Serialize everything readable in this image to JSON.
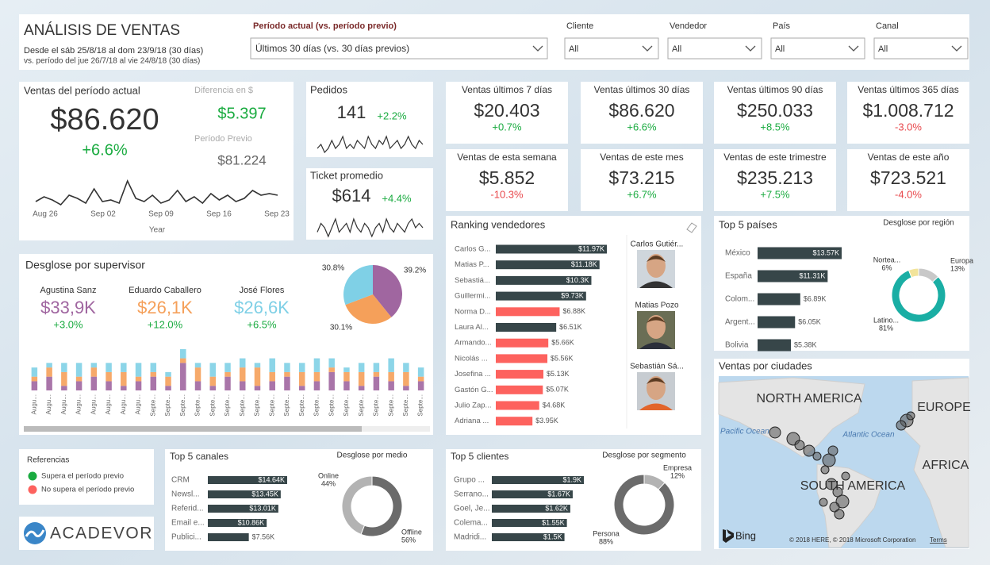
{
  "header": {
    "title": "ANÁLISIS DE VENTAS",
    "date_range": "Desde el sáb 25/8/18 al dom 23/9/18 (30 días)",
    "compare_range": "vs. período del jue 26/7/18 al vie 24/8/18 (30 días)",
    "period_label": "Período actual (vs. período previo)",
    "period_value": "Últimos 30 días (vs. 30 días previos)",
    "filters": [
      {
        "label": "Cliente",
        "value": "All"
      },
      {
        "label": "Vendedor",
        "value": "All"
      },
      {
        "label": "País",
        "value": "All"
      },
      {
        "label": "Canal",
        "value": "All"
      }
    ]
  },
  "current_sales": {
    "title": "Ventas del período actual",
    "value": "$86.620",
    "change": "+6.6%",
    "diff_label": "Diferencia en $",
    "diff_value": "$5.397",
    "prev_label": "Período Previo",
    "prev_value": "$81.224",
    "trend": [
      2.6,
      2.9,
      2.7,
      2.4,
      3.0,
      2.8,
      2.5,
      3.4,
      2.6,
      2.7,
      2.5,
      3.9,
      2.8,
      2.6,
      3.0,
      2.5,
      2.7,
      3.3,
      2.6,
      2.9,
      2.5,
      3.1,
      2.7,
      3.0,
      2.6,
      2.8,
      3.3,
      3.0,
      3.1,
      3.0
    ],
    "x_labels": [
      "Aug 26",
      "Sep 02",
      "Sep 09",
      "Sep 16",
      "Sep 23"
    ],
    "x_title": "Year"
  },
  "orders": {
    "title": "Pedidos",
    "value": "141",
    "change": "+2.2%",
    "trend": [
      3,
      4,
      2,
      3,
      5,
      3,
      4,
      6,
      3,
      4,
      3,
      5,
      4,
      3,
      6,
      4,
      3,
      5,
      4,
      6,
      3,
      4,
      5,
      3,
      4,
      6,
      4,
      3,
      5,
      4
    ]
  },
  "ticket": {
    "title": "Ticket promedio",
    "value": "$614",
    "change": "+4.4%",
    "trend": [
      3,
      5,
      4,
      2,
      4,
      6,
      3,
      4,
      5,
      3,
      6,
      4,
      3,
      5,
      4,
      2,
      4,
      5,
      3,
      6,
      4,
      3,
      5,
      4,
      3,
      5,
      6,
      4,
      5,
      4
    ]
  },
  "cards": [
    {
      "title": "Ventas últimos 7 días",
      "value": "$20.403",
      "change": "+0.7%"
    },
    {
      "title": "Ventas últimos 30 días",
      "value": "$86.620",
      "change": "+6.6%"
    },
    {
      "title": "Ventas últimos 90 días",
      "value": "$250.033",
      "change": "+8.5%"
    },
    {
      "title": "Ventas últimos 365 días",
      "value": "$1.008.712",
      "change": "-3.0%"
    },
    {
      "title": "Ventas de esta semana",
      "value": "$5.852",
      "change": "-10.3%"
    },
    {
      "title": "Ventas de este mes",
      "value": "$73.215",
      "change": "+6.7%"
    },
    {
      "title": "Ventas de este trimestre",
      "value": "$235.213",
      "change": "+7.5%"
    },
    {
      "title": "Ventas de este año",
      "value": "$723.521",
      "change": "-4.0%"
    }
  ],
  "supervisors": {
    "title": "Desglose por supervisor",
    "people": [
      {
        "name": "Agustina Sanz",
        "value": "$33,9K",
        "change": "+3.0%",
        "color": "#a066a0",
        "share": 39.2,
        "share_label": "39.2%"
      },
      {
        "name": "Eduardo Caballero",
        "value": "$26,1K",
        "change": "+12.0%",
        "color": "#f5a05a",
        "share": 30.1,
        "share_label": "30.1%"
      },
      {
        "name": "José Flores",
        "value": "$26,6K",
        "change": "+6.5%",
        "color": "#7fd0e6",
        "share": 30.8,
        "share_label": "30.8%"
      }
    ],
    "timeline": {
      "categories": [
        "Augu...",
        "Augu...",
        "Augu...",
        "Augu...",
        "Augu...",
        "Augu...",
        "Augu...",
        "Augu...",
        "Septe...",
        "Septe...",
        "Septe...",
        "Septe...",
        "Septe...",
        "Septe...",
        "Septe...",
        "Septe...",
        "Septe...",
        "Septe...",
        "Septe...",
        "Septe...",
        "Septe...",
        "Septe...",
        "Septe...",
        "Septe...",
        "Septe...",
        "Septe...",
        "Septe..."
      ],
      "series": [
        [
          2,
          3,
          1,
          2,
          3,
          2,
          1,
          2,
          3,
          1,
          6,
          2,
          1,
          3,
          2,
          1,
          2,
          3,
          1,
          2,
          4,
          2,
          1,
          3,
          2,
          1,
          2
        ],
        [
          1,
          2,
          3,
          1,
          2,
          2,
          3,
          1,
          1,
          2,
          1,
          3,
          2,
          1,
          3,
          4,
          2,
          1,
          3,
          2,
          1,
          2,
          3,
          1,
          2,
          3,
          1
        ],
        [
          2,
          1,
          2,
          3,
          1,
          2,
          2,
          3,
          2,
          1,
          2,
          1,
          3,
          2,
          2,
          1,
          3,
          2,
          2,
          3,
          2,
          1,
          2,
          2,
          3,
          2,
          2
        ]
      ]
    }
  },
  "ranking": {
    "title": "Ranking vendedores",
    "rows": [
      {
        "name": "Carlos G...",
        "value": 11970,
        "label": "$11.97K",
        "color": "#374649"
      },
      {
        "name": "Matias P...",
        "value": 11180,
        "label": "$11.18K",
        "color": "#374649"
      },
      {
        "name": "Sebastiá...",
        "value": 10300,
        "label": "$10.3K",
        "color": "#374649"
      },
      {
        "name": "Guillermi...",
        "value": 9730,
        "label": "$9.73K",
        "color": "#374649"
      },
      {
        "name": "Norma D...",
        "value": 6880,
        "label": "$6.88K",
        "color": "#fd625e"
      },
      {
        "name": "Laura Al...",
        "value": 6510,
        "label": "$6.51K",
        "color": "#374649"
      },
      {
        "name": "Armando...",
        "value": 5660,
        "label": "$5.66K",
        "color": "#fd625e"
      },
      {
        "name": "Nicolás ...",
        "value": 5560,
        "label": "$5.56K",
        "color": "#fd625e"
      },
      {
        "name": "Josefina ...",
        "value": 5130,
        "label": "$5.13K",
        "color": "#fd625e"
      },
      {
        "name": "Gastón G...",
        "value": 5070,
        "label": "$5.07K",
        "color": "#fd625e"
      },
      {
        "name": "Julio Zap...",
        "value": 4680,
        "label": "$4.68K",
        "color": "#fd625e"
      },
      {
        "name": "Adriana ...",
        "value": 3950,
        "label": "$3.95K",
        "color": "#fd625e"
      }
    ],
    "photos": [
      "Carlos Gutiér...",
      "Matias Pozo",
      "Sebastián Sá..."
    ]
  },
  "countries": {
    "title": "Top 5 países",
    "rows": [
      {
        "name": "México",
        "value": 13570,
        "label": "$13.57K",
        "color": "#374649"
      },
      {
        "name": "España",
        "value": 11310,
        "label": "$11.31K",
        "color": "#374649"
      },
      {
        "name": "Colom...",
        "value": 6890,
        "label": "$6.89K",
        "color": "#374649"
      },
      {
        "name": "Argent...",
        "value": 6050,
        "label": "$6.05K",
        "color": "#374649"
      },
      {
        "name": "Bolivia",
        "value": 5380,
        "label": "$5.38K",
        "color": "#374649"
      }
    ],
    "donut_title": "Desglose por región",
    "donut": [
      {
        "name": "Europa",
        "value": 13,
        "label": "13%",
        "color": "#c8c8c8"
      },
      {
        "name": "Latino...",
        "value": 81,
        "label": "81%",
        "color": "#1aaea4"
      },
      {
        "name": "Nortea...",
        "value": 6,
        "label": "6%",
        "color": "#f2e49b"
      }
    ]
  },
  "map": {
    "title": "Ventas por ciudades",
    "labels": [
      "NORTH AMERICA",
      "EUROPE",
      "AFRICA",
      "SOUTH AMERICA",
      "Pacific Ocean",
      "Atlantic Ocean"
    ],
    "brand": "Bing",
    "copyright": "© 2018 HERE, © 2018 Microsoft Corporation",
    "terms": "Terms"
  },
  "legend": {
    "title": "Referencias",
    "items": [
      {
        "name": "Supera el período previo",
        "color": "#1aab40"
      },
      {
        "name": "No supera el período previo",
        "color": "#fd625e"
      }
    ]
  },
  "logo": "ACADEVOR",
  "channels": {
    "title": "Top 5 canales",
    "rows": [
      {
        "name": "CRM",
        "value": 14640,
        "label": "$14.64K",
        "color": "#374649"
      },
      {
        "name": "Newsl...",
        "value": 13450,
        "label": "$13.45K",
        "color": "#374649"
      },
      {
        "name": "Referid...",
        "value": 13010,
        "label": "$13.01K",
        "color": "#374649"
      },
      {
        "name": "Email e...",
        "value": 10860,
        "label": "$10.86K",
        "color": "#374649"
      },
      {
        "name": "Publici...",
        "value": 7560,
        "label": "$7.56K",
        "color": "#374649"
      }
    ],
    "donut_title": "Desglose por medio",
    "donut": [
      {
        "name": "Offline",
        "value": 56,
        "label": "56%",
        "color": "#6b6b6b"
      },
      {
        "name": "Online",
        "value": 44,
        "label": "44%",
        "color": "#b3b3b3"
      }
    ]
  },
  "clients": {
    "title": "Top 5 clientes",
    "rows": [
      {
        "name": "Grupo ...",
        "value": 1900,
        "label": "$1.9K",
        "color": "#374649"
      },
      {
        "name": "Serrano...",
        "value": 1670,
        "label": "$1.67K",
        "color": "#374649"
      },
      {
        "name": "Goel, Je...",
        "value": 1620,
        "label": "$1.62K",
        "color": "#374649"
      },
      {
        "name": "Colema...",
        "value": 1550,
        "label": "$1.55K",
        "color": "#374649"
      },
      {
        "name": "Madridi...",
        "value": 1500,
        "label": "$1.5K",
        "color": "#374649"
      }
    ],
    "donut_title": "Desglose por segmento",
    "donut": [
      {
        "name": "Empresa",
        "value": 12,
        "label": "12%",
        "color": "#b3b3b3"
      },
      {
        "name": "Persona",
        "value": 88,
        "label": "88%",
        "color": "#6b6b6b"
      }
    ]
  }
}
